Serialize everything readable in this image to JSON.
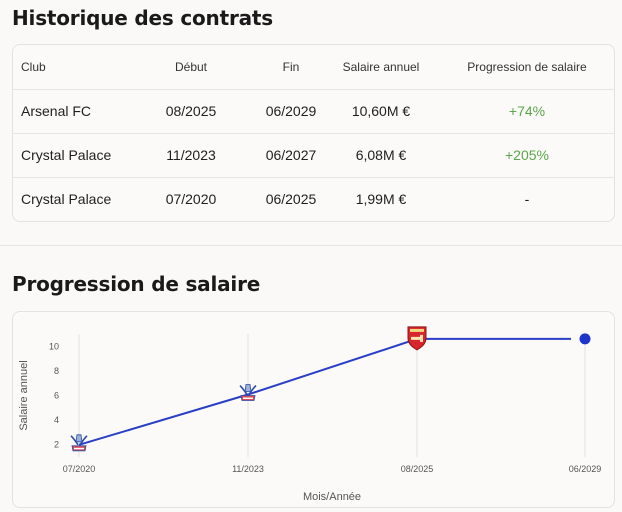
{
  "sections": {
    "history_title": "Historique des contrats",
    "progression_title": "Progression de salaire"
  },
  "table": {
    "headers": [
      "Club",
      "Début",
      "Fin",
      "Salaire annuel",
      "Progression de salaire"
    ],
    "rows": [
      {
        "club": "Arsenal FC",
        "debut": "08/2025",
        "fin": "06/2029",
        "salaire": "10,60M €",
        "progression": "+74%"
      },
      {
        "club": "Crystal Palace",
        "debut": "11/2023",
        "fin": "06/2027",
        "salaire": "6,08M €",
        "progression": "+205%"
      },
      {
        "club": "Crystal Palace",
        "debut": "07/2020",
        "fin": "06/2025",
        "salaire": "1,99M €",
        "progression": "-"
      }
    ]
  },
  "colors": {
    "positive": "#5aa64a",
    "line": "#2a3fc7",
    "endpoint": "#1f35c9",
    "arsenal": "#d7262d",
    "palace": "#2c4aa8"
  },
  "chart_data": {
    "type": "line",
    "xlabel": "Mois/Année",
    "ylabel": "Salaire annuel",
    "categories": [
      "07/2020",
      "11/2023",
      "08/2025",
      "06/2029"
    ],
    "yticks": [
      2,
      4,
      6,
      8,
      10
    ],
    "ylim": [
      1,
      11
    ],
    "series": [
      {
        "values": [
          1.99,
          6.08,
          10.6,
          10.6
        ]
      }
    ],
    "markers": [
      "crystal-palace-crest",
      "crystal-palace-crest",
      "arsenal-crest",
      "dot"
    ],
    "grid": "vertical"
  }
}
